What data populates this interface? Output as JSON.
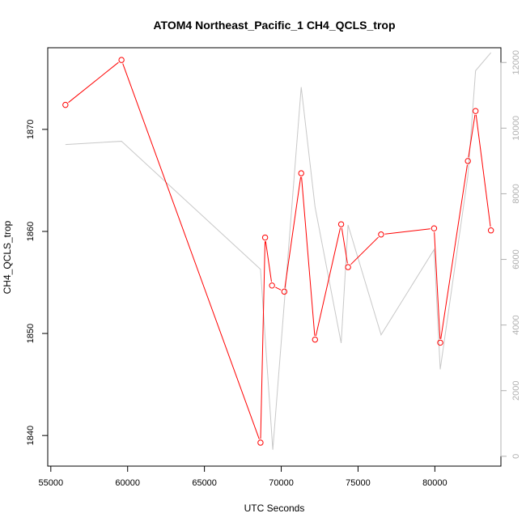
{
  "chart_data": {
    "type": "line",
    "title": "ATOM4 Northeast_Pacific_1 CH4_QCLS_trop",
    "xlabel": "UTC Seconds",
    "ylabel": "CH4_QCLS_trop",
    "xlim": [
      54800,
      84300
    ],
    "ylim": [
      1837.0,
      1878.0
    ],
    "y2lim": [
      -300,
      12450
    ],
    "x_ticks": [
      55000,
      60000,
      65000,
      70000,
      75000,
      80000
    ],
    "x_tick_labels": [
      "55000",
      "60000",
      "65000",
      "70000",
      "75000",
      "80000"
    ],
    "y_ticks": [
      1840,
      1850,
      1860,
      1870
    ],
    "y_tick_labels": [
      "1840",
      "1850",
      "1860",
      "1870"
    ],
    "y2_ticks": [
      0,
      2000,
      4000,
      6000,
      8000,
      10000,
      12000
    ],
    "y2_tick_labels": [
      "0",
      "2000",
      "4000",
      "6000",
      "8000",
      "10000",
      "12000"
    ],
    "grid": false,
    "series": [
      {
        "axis": "left",
        "color": "#ff0000",
        "style": "line+circles",
        "x": [
          55950,
          59600,
          68650,
          68950,
          69400,
          70200,
          71300,
          72200,
          73900,
          74350,
          76500,
          79950,
          80350,
          82150,
          82650,
          83650
        ],
        "y": [
          1872.4,
          1876.8,
          1839.3,
          1859.4,
          1854.7,
          1854.1,
          1865.7,
          1849.4,
          1860.7,
          1856.5,
          1859.7,
          1860.3,
          1849.1,
          1866.9,
          1871.8,
          1860.1
        ]
      },
      {
        "axis": "right",
        "color": "#c8c8c8",
        "style": "line",
        "x": [
          55950,
          59600,
          68650,
          69450,
          71300,
          72200,
          73900,
          74350,
          76500,
          79950,
          80350,
          82150,
          82650,
          83650
        ],
        "y": [
          9500,
          9600,
          5700,
          200,
          11250,
          7600,
          3450,
          7050,
          3700,
          6300,
          2650,
          8550,
          11750,
          12300
        ]
      }
    ]
  }
}
